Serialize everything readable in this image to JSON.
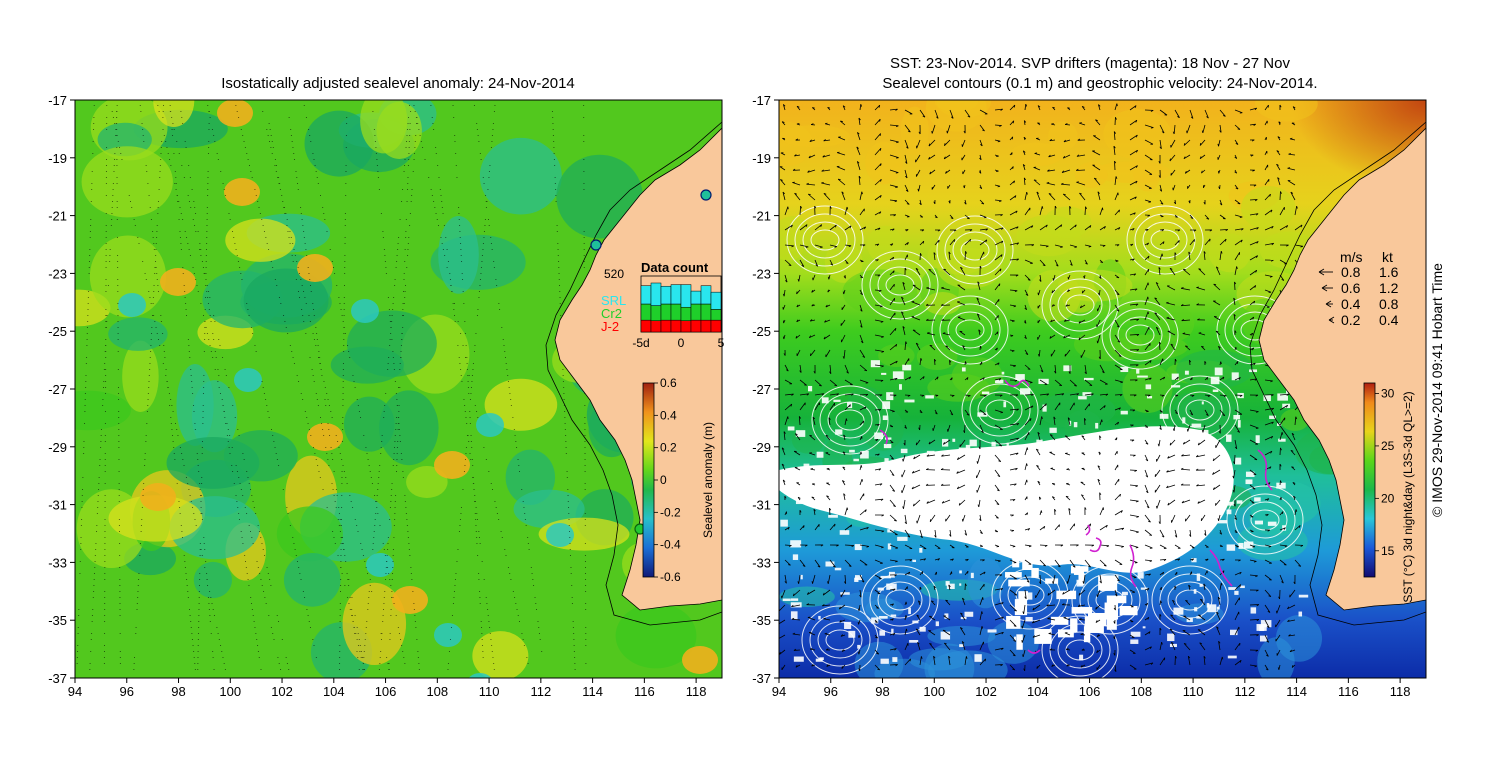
{
  "left_panel": {
    "title": "Isostatically adjusted sealevel anomaly: 24-Nov-2014",
    "x_ticks": [
      "94",
      "96",
      "98",
      "100",
      "102",
      "104",
      "106",
      "108",
      "110",
      "112",
      "114",
      "116",
      "118"
    ],
    "y_ticks": [
      "-17",
      "-19",
      "-21",
      "-23",
      "-25",
      "-27",
      "-29",
      "-31",
      "-33",
      "-35",
      "-37"
    ],
    "colorbar": {
      "label": "Sealevel anomaly (m)",
      "ticks": [
        "0.6",
        "0.4",
        "0.2",
        "0",
        "-0.2",
        "-0.4",
        "-0.6"
      ],
      "range": [
        -0.6,
        0.6
      ]
    },
    "data_count": {
      "title": "Data count",
      "max_label": "520",
      "x_ticks": [
        "-5d",
        "0",
        "5"
      ],
      "legend": [
        {
          "label": "SRL",
          "color": "#29e6ee"
        },
        {
          "label": "Cr2",
          "color": "#1fcf2a"
        },
        {
          "label": "J-2",
          "color": "#ff0000"
        }
      ],
      "bars": [
        {
          "j2": 110,
          "cr2": 150,
          "srl": 170
        },
        {
          "j2": 105,
          "cr2": 140,
          "srl": 210
        },
        {
          "j2": 110,
          "cr2": 150,
          "srl": 165
        },
        {
          "j2": 110,
          "cr2": 150,
          "srl": 180
        },
        {
          "j2": 105,
          "cr2": 125,
          "srl": 210
        },
        {
          "j2": 110,
          "cr2": 150,
          "srl": 120
        },
        {
          "j2": 110,
          "cr2": 150,
          "srl": 170
        },
        {
          "j2": 110,
          "cr2": 100,
          "srl": 160
        }
      ],
      "max": 520
    }
  },
  "right_panel": {
    "title_line1": "SST: 23-Nov-2014. SVP drifters (magenta): 18 Nov - 27 Nov",
    "title_line2": "Sealevel contours (0.1 m) and geostrophic velocity: 24-Nov-2014.",
    "x_ticks": [
      "94",
      "96",
      "98",
      "100",
      "102",
      "104",
      "106",
      "108",
      "110",
      "112",
      "114",
      "116",
      "118"
    ],
    "y_ticks": [
      "-17",
      "-19",
      "-21",
      "-23",
      "-25",
      "-27",
      "-29",
      "-31",
      "-33",
      "-35",
      "-37"
    ],
    "velocity_legend": {
      "header_ms": "m/s",
      "header_kt": "kt",
      "rows": [
        {
          "ms": "0.8",
          "kt": "1.6"
        },
        {
          "ms": "0.6",
          "kt": "1.2"
        },
        {
          "ms": "0.4",
          "kt": "0.8"
        },
        {
          "ms": "0.2",
          "kt": "0.4"
        }
      ]
    },
    "colorbar": {
      "label": "SST (°C) 3d night&day (L3S-3d QL>=2)",
      "ticks": [
        "30",
        "25",
        "20",
        "15"
      ],
      "range": [
        12.5,
        31
      ]
    }
  },
  "credit": "© IMOS 29-Nov-2014 09:41 Hobart Time",
  "colors": {
    "land": "#f9c89b",
    "sst_cold": "#0b2fb0",
    "sst_mid": "#11b81c",
    "sst_warm": "#f0a51c",
    "sst_hot": "#c84a12"
  }
}
